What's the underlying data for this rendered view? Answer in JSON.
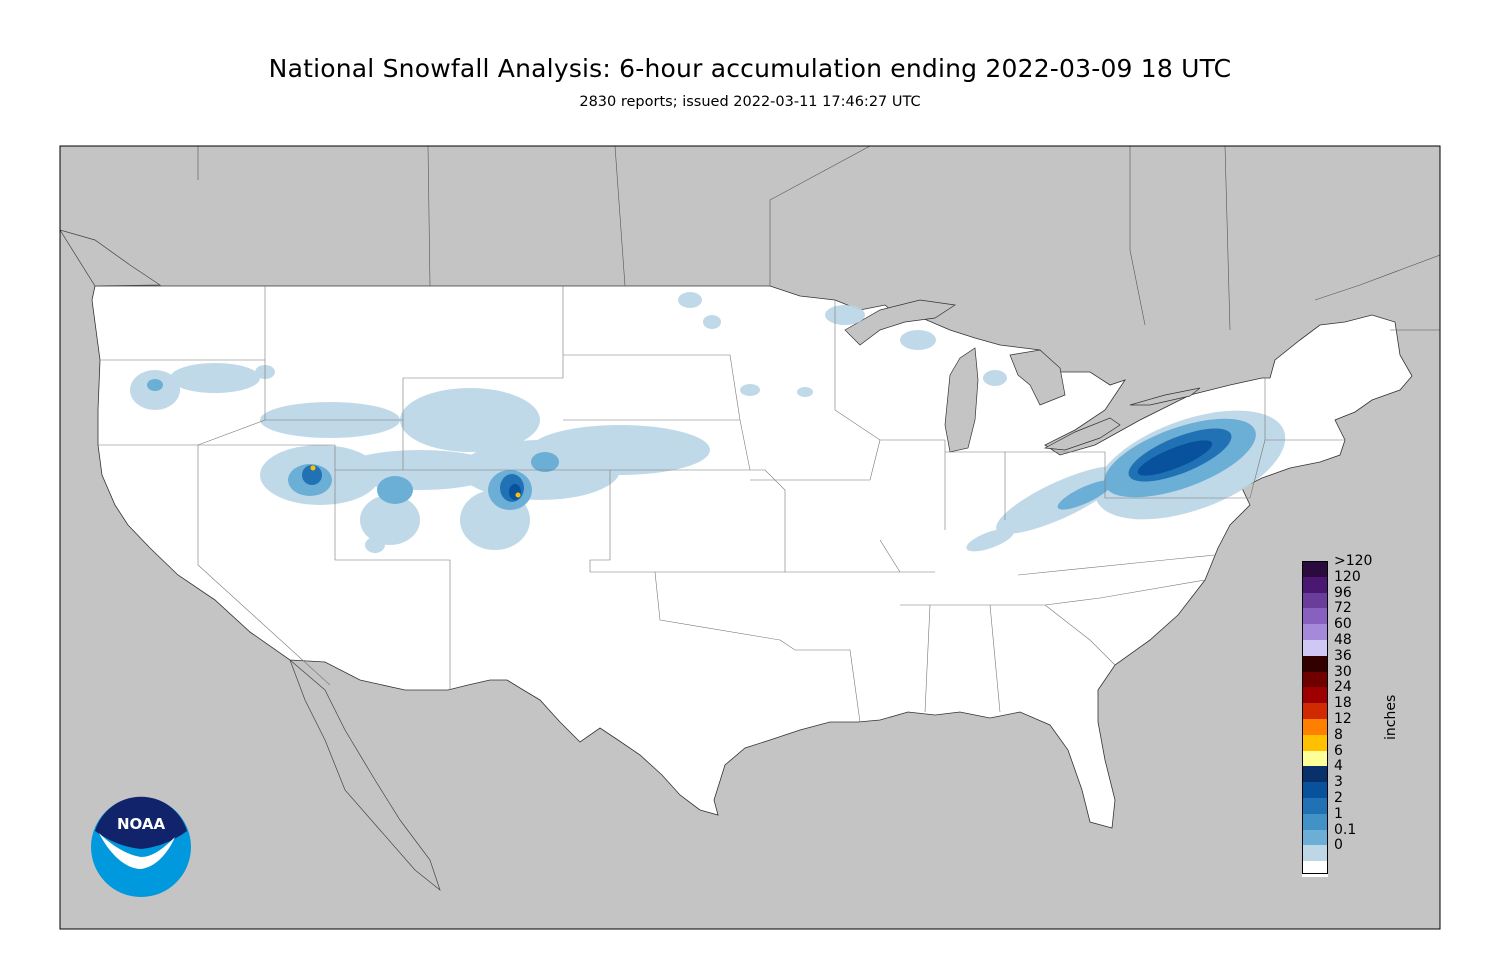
{
  "title": "National Snowfall Analysis: 6-hour accumulation ending 2022-03-09 18 UTC",
  "subtitle": "2830 reports; issued 2022-03-11 17:46:27 UTC",
  "legend": {
    "units": "inches",
    "entries": [
      {
        "label": ">120",
        "color": "#2b0a3d"
      },
      {
        "label": "120",
        "color": "#4a1870"
      },
      {
        "label": "96",
        "color": "#6a3d9a"
      },
      {
        "label": "72",
        "color": "#8860bf"
      },
      {
        "label": "60",
        "color": "#a48ad8"
      },
      {
        "label": "48",
        "color": "#cfc8f5"
      },
      {
        "label": "36",
        "color": "#330000"
      },
      {
        "label": "30",
        "color": "#6e0000"
      },
      {
        "label": "24",
        "color": "#9e0000"
      },
      {
        "label": "18",
        "color": "#d22a00"
      },
      {
        "label": "12",
        "color": "#ff7f00"
      },
      {
        "label": "8",
        "color": "#ffc000"
      },
      {
        "label": "6",
        "color": "#ffff99"
      },
      {
        "label": "4",
        "color": "#08306b"
      },
      {
        "label": "3",
        "color": "#08519c"
      },
      {
        "label": "2",
        "color": "#2171b5"
      },
      {
        "label": "1",
        "color": "#4292c6"
      },
      {
        "label": "0.1",
        "color": "#6baed6"
      },
      {
        "label": "0",
        "color": "#bdd7e7"
      }
    ],
    "lowest_color": "#ffffff"
  },
  "logo": {
    "text": "NOAA",
    "fill_color": "#0099dd",
    "arc_color": "#10236b"
  },
  "map_colors": {
    "background": "#c4c4c4",
    "land": "#ffffff",
    "border": "#555555"
  }
}
